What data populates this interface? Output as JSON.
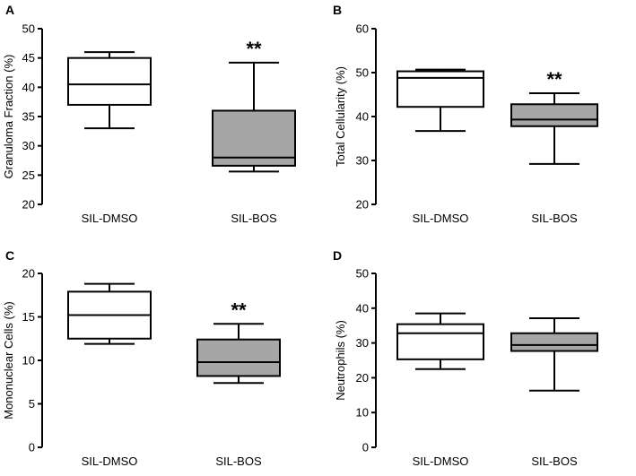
{
  "chart_data": [
    {
      "type": "boxplot",
      "panel": "A",
      "ylabel": "Granuloma Fraction (%)",
      "ylim": [
        20,
        50
      ],
      "yticks": [
        "20",
        "25",
        "30",
        "35",
        "40",
        "45",
        "50"
      ],
      "categories": [
        "SIL-DMSO",
        "SIL-BOS"
      ],
      "boxes": [
        {
          "name": "SIL-DMSO",
          "min": 33,
          "q1": 37,
          "median": 40.5,
          "q3": 45,
          "max": 46,
          "fill": "#ffffff"
        },
        {
          "name": "SIL-BOS",
          "min": 25.6,
          "q1": 26.6,
          "median": 28,
          "q3": 36,
          "max": 44.2,
          "fill": "#a6a6a6"
        }
      ],
      "annotations": [
        {
          "category": "SIL-BOS",
          "text": "**"
        }
      ]
    },
    {
      "type": "boxplot",
      "panel": "B",
      "ylabel": "Total Cellularity (%)",
      "ylim": [
        20,
        60
      ],
      "yticks": [
        "20",
        "30",
        "40",
        "50",
        "60"
      ],
      "categories": [
        "SIL-DMSO",
        "SIL-BOS"
      ],
      "boxes": [
        {
          "name": "SIL-DMSO",
          "min": 36.7,
          "q1": 42.2,
          "median": 48.8,
          "q3": 50.3,
          "max": 50.7,
          "fill": "#ffffff"
        },
        {
          "name": "SIL-BOS",
          "min": 29.2,
          "q1": 37.8,
          "median": 39.3,
          "q3": 42.8,
          "max": 45.3,
          "fill": "#a6a6a6"
        }
      ],
      "annotations": [
        {
          "category": "SIL-BOS",
          "text": "**"
        }
      ]
    },
    {
      "type": "boxplot",
      "panel": "C",
      "ylabel": "Mononuclear Cells (%)",
      "ylim": [
        0,
        20
      ],
      "yticks": [
        "0",
        "5",
        "10",
        "15",
        "20"
      ],
      "categories": [
        "SIL-DMSO",
        "SIL-BOS"
      ],
      "boxes": [
        {
          "name": "SIL-DMSO",
          "min": 11.9,
          "q1": 12.5,
          "median": 15.2,
          "q3": 17.9,
          "max": 18.8,
          "fill": "#ffffff"
        },
        {
          "name": "SIL-BOS",
          "min": 7.4,
          "q1": 8.2,
          "median": 9.8,
          "q3": 12.4,
          "max": 14.2,
          "fill": "#a6a6a6"
        }
      ],
      "annotations": [
        {
          "category": "SIL-BOS",
          "text": "**"
        }
      ]
    },
    {
      "type": "boxplot",
      "panel": "D",
      "ylabel": "Neutrophils (%)",
      "ylim": [
        0,
        50
      ],
      "yticks": [
        "0",
        "10",
        "20",
        "30",
        "40",
        "50"
      ],
      "categories": [
        "SIL-DMSO",
        "SIL-BOS"
      ],
      "boxes": [
        {
          "name": "SIL-DMSO",
          "min": 22.5,
          "q1": 25.3,
          "median": 32.8,
          "q3": 35.4,
          "max": 38.5,
          "fill": "#ffffff"
        },
        {
          "name": "SIL-BOS",
          "min": 16.3,
          "q1": 27.7,
          "median": 29.4,
          "q3": 32.8,
          "max": 37.1,
          "fill": "#a6a6a6"
        }
      ],
      "annotations": []
    }
  ]
}
